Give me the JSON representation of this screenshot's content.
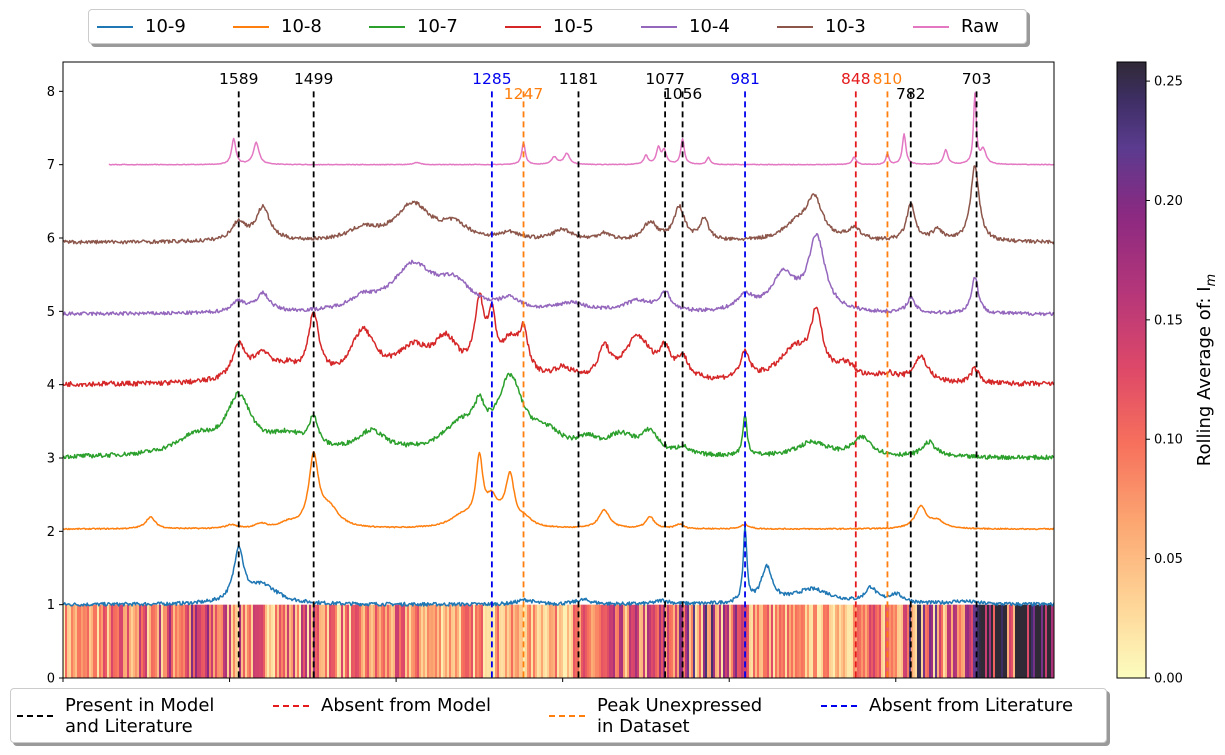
{
  "chart_data": {
    "type": "line",
    "title": "",
    "xlabel": "",
    "ylabel": "",
    "x_range": [
      1800,
      610
    ],
    "x_reversed": true,
    "ylim": [
      0,
      8.4
    ],
    "yticks": [
      "0",
      "1",
      "2",
      "3",
      "4",
      "5",
      "6",
      "7",
      "8"
    ],
    "grid": false,
    "legend_placement": "top-center",
    "series": [
      {
        "name": "10-9",
        "color": "#1f77b4",
        "offset": 1,
        "peaks": [
          [
            1589,
            0.72,
            7
          ],
          [
            1560,
            0.25,
            22
          ],
          [
            1245,
            0.06,
            12
          ],
          [
            1175,
            0.06,
            12
          ],
          [
            1080,
            0.05,
            10
          ],
          [
            955,
            0.48,
            8
          ],
          [
            981,
            1.02,
            2.5
          ],
          [
            900,
            0.2,
            28
          ],
          [
            830,
            0.2,
            8
          ],
          [
            800,
            0.12,
            12
          ],
          [
            720,
            0.04,
            20
          ]
        ],
        "noise": 0.025
      },
      {
        "name": "10-8",
        "color": "#ff7f0e",
        "offset": 2.03,
        "peaks": [
          [
            1695,
            0.16,
            7
          ],
          [
            1598,
            0.05,
            8
          ],
          [
            1562,
            0.06,
            8
          ],
          [
            1530,
            0.06,
            10
          ],
          [
            1499,
            0.95,
            7
          ],
          [
            1480,
            0.25,
            14
          ],
          [
            1320,
            0.16,
            18
          ],
          [
            1300,
            0.87,
            5
          ],
          [
            1285,
            0.32,
            8
          ],
          [
            1270,
            0.1,
            10
          ],
          [
            1263,
            0.62,
            6
          ],
          [
            1245,
            0.1,
            10
          ],
          [
            1150,
            0.25,
            8
          ],
          [
            1095,
            0.16,
            6
          ],
          [
            1060,
            0.06,
            6
          ],
          [
            981,
            0.06,
            6
          ],
          [
            770,
            0.3,
            8
          ],
          [
            750,
            0.1,
            10
          ]
        ],
        "noise": 0.008
      },
      {
        "name": "10-7",
        "color": "#2ca02c",
        "offset": 3,
        "peaks": [
          [
            1589,
            0.75,
            18
          ],
          [
            1640,
            0.25,
            30
          ],
          [
            1530,
            0.25,
            30
          ],
          [
            1499,
            0.4,
            6
          ],
          [
            1430,
            0.3,
            22
          ],
          [
            1320,
            0.4,
            30
          ],
          [
            1300,
            0.35,
            7
          ],
          [
            1263,
            0.95,
            18
          ],
          [
            1220,
            0.25,
            25
          ],
          [
            1170,
            0.15,
            15
          ],
          [
            1130,
            0.25,
            22
          ],
          [
            1095,
            0.28,
            12
          ],
          [
            1056,
            0.1,
            8
          ],
          [
            981,
            0.55,
            3
          ],
          [
            900,
            0.2,
            22
          ],
          [
            840,
            0.25,
            14
          ],
          [
            760,
            0.2,
            10
          ]
        ],
        "noise": 0.03
      },
      {
        "name": "10-5",
        "color": "#d62728",
        "offset": 4,
        "peaks": [
          [
            1589,
            0.45,
            10
          ],
          [
            1560,
            0.35,
            15
          ],
          [
            1530,
            0.15,
            15
          ],
          [
            1499,
            0.85,
            8
          ],
          [
            1440,
            0.65,
            18
          ],
          [
            1380,
            0.4,
            25
          ],
          [
            1340,
            0.5,
            18
          ],
          [
            1300,
            0.95,
            7
          ],
          [
            1285,
            0.7,
            6
          ],
          [
            1263,
            0.45,
            12
          ],
          [
            1247,
            0.55,
            7
          ],
          [
            1200,
            0.15,
            15
          ],
          [
            1150,
            0.4,
            8
          ],
          [
            1110,
            0.6,
            20
          ],
          [
            1077,
            0.35,
            8
          ],
          [
            1056,
            0.28,
            8
          ],
          [
            981,
            0.35,
            7
          ],
          [
            920,
            0.45,
            25
          ],
          [
            895,
            0.8,
            8
          ],
          [
            860,
            0.2,
            15
          ],
          [
            810,
            0.1,
            15
          ],
          [
            770,
            0.35,
            10
          ],
          [
            705,
            0.2,
            6
          ]
        ],
        "noise": 0.035
      },
      {
        "name": "10-4",
        "color": "#9467bd",
        "offset": 4.96,
        "peaks": [
          [
            1589,
            0.15,
            10
          ],
          [
            1560,
            0.25,
            10
          ],
          [
            1440,
            0.15,
            20
          ],
          [
            1380,
            0.62,
            30
          ],
          [
            1330,
            0.35,
            25
          ],
          [
            1263,
            0.15,
            15
          ],
          [
            1190,
            0.12,
            22
          ],
          [
            1110,
            0.15,
            20
          ],
          [
            1077,
            0.25,
            8
          ],
          [
            981,
            0.2,
            12
          ],
          [
            935,
            0.5,
            18
          ],
          [
            895,
            1.0,
            12
          ],
          [
            782,
            0.2,
            6
          ],
          [
            705,
            0.5,
            5
          ]
        ],
        "noise": 0.025
      },
      {
        "name": "10-3",
        "color": "#8c564b",
        "offset": 5.94,
        "peaks": [
          [
            1589,
            0.25,
            10
          ],
          [
            1560,
            0.45,
            10
          ],
          [
            1440,
            0.15,
            20
          ],
          [
            1380,
            0.5,
            25
          ],
          [
            1330,
            0.2,
            20
          ],
          [
            1263,
            0.1,
            15
          ],
          [
            1200,
            0.15,
            15
          ],
          [
            1150,
            0.1,
            10
          ],
          [
            1095,
            0.25,
            10
          ],
          [
            1060,
            0.45,
            8
          ],
          [
            1030,
            0.3,
            6
          ],
          [
            920,
            0.2,
            20
          ],
          [
            898,
            0.55,
            12
          ],
          [
            850,
            0.15,
            10
          ],
          [
            782,
            0.5,
            6
          ],
          [
            750,
            0.15,
            8
          ],
          [
            705,
            1.05,
            6
          ]
        ],
        "noise": 0.025
      },
      {
        "name": "Raw",
        "color": "#e377c2",
        "offset": 7,
        "x_start": 1745,
        "peaks": [
          [
            1595,
            0.35,
            3
          ],
          [
            1568,
            0.3,
            4
          ],
          [
            1375,
            0.03,
            5
          ],
          [
            1247,
            0.3,
            2.5
          ],
          [
            1210,
            0.1,
            4
          ],
          [
            1195,
            0.15,
            4
          ],
          [
            1100,
            0.12,
            3
          ],
          [
            1085,
            0.22,
            3
          ],
          [
            1078,
            0.18,
            3
          ],
          [
            1056,
            0.35,
            2.5
          ],
          [
            1025,
            0.1,
            2.5
          ],
          [
            850,
            0.1,
            3
          ],
          [
            810,
            0.15,
            2
          ],
          [
            790,
            0.42,
            2.5
          ],
          [
            740,
            0.2,
            3
          ],
          [
            705,
            0.95,
            2
          ],
          [
            695,
            0.2,
            4
          ]
        ],
        "noise": 0.004
      }
    ],
    "vlines": [
      {
        "x": 1589,
        "label": "1589",
        "kind": "present",
        "label_level": "high"
      },
      {
        "x": 1499,
        "label": "1499",
        "kind": "present",
        "label_level": "high"
      },
      {
        "x": 1285,
        "label": "1285",
        "kind": "absent_literature",
        "label_level": "high"
      },
      {
        "x": 1247,
        "label": "1247",
        "kind": "unexpressed",
        "label_level": "low"
      },
      {
        "x": 1181,
        "label": "1181",
        "kind": "present",
        "label_level": "high"
      },
      {
        "x": 1077,
        "label": "1077",
        "kind": "present",
        "label_level": "high"
      },
      {
        "x": 1056,
        "label": "1056",
        "kind": "present",
        "label_level": "low"
      },
      {
        "x": 981,
        "label": "981",
        "kind": "absent_literature",
        "label_level": "high"
      },
      {
        "x": 848,
        "label": "848",
        "kind": "absent_model",
        "label_level": "high"
      },
      {
        "x": 810,
        "label": "810",
        "kind": "unexpressed",
        "label_level": "high"
      },
      {
        "x": 782,
        "label": "782",
        "kind": "present",
        "label_level": "low"
      },
      {
        "x": 703,
        "label": "703",
        "kind": "present",
        "label_level": "high"
      }
    ],
    "vline_colors": {
      "present": "#000000",
      "absent_model": "#e41a1c",
      "unexpressed": "#ff7f0e",
      "absent_literature": "#0000ee"
    },
    "heatmap": {
      "y_range": [
        0,
        1
      ],
      "colormap": "magma_r",
      "vmin": 0,
      "vmax": 0.258,
      "colorbar_ticks": [
        "0.00",
        "0.05",
        "0.10",
        "0.15",
        "0.20",
        "0.25"
      ],
      "colorbar_label": "Rolling Average of: I",
      "colorbar_label_sub": "m",
      "profile": [
        [
          1800,
          0.06
        ],
        [
          1700,
          0.09
        ],
        [
          1650,
          0.12
        ],
        [
          1600,
          0.1
        ],
        [
          1560,
          0.08
        ],
        [
          1500,
          0.1
        ],
        [
          1450,
          0.07
        ],
        [
          1400,
          0.08
        ],
        [
          1350,
          0.06
        ],
        [
          1300,
          0.07
        ],
        [
          1250,
          0.05
        ],
        [
          1200,
          0.06
        ],
        [
          1150,
          0.09
        ],
        [
          1100,
          0.1
        ],
        [
          1060,
          0.12
        ],
        [
          1030,
          0.14
        ],
        [
          1000,
          0.12
        ],
        [
          960,
          0.08
        ],
        [
          900,
          0.05
        ],
        [
          850,
          0.07
        ],
        [
          800,
          0.09
        ],
        [
          790,
          0.2
        ],
        [
          760,
          0.12
        ],
        [
          720,
          0.1
        ],
        [
          705,
          0.14
        ],
        [
          690,
          0.25
        ],
        [
          670,
          0.258
        ]
      ]
    }
  },
  "legend_top": {
    "items": [
      {
        "label": "10-9",
        "color": "#1f77b4"
      },
      {
        "label": "10-8",
        "color": "#ff7f0e"
      },
      {
        "label": "10-7",
        "color": "#2ca02c"
      },
      {
        "label": "10-5",
        "color": "#d62728"
      },
      {
        "label": "10-4",
        "color": "#9467bd"
      },
      {
        "label": "10-3",
        "color": "#8c564b"
      },
      {
        "label": "Raw",
        "color": "#e377c2"
      }
    ]
  },
  "legend_bottom": {
    "items": [
      {
        "label": "Present in Model\nand Literature",
        "color": "#000000"
      },
      {
        "label": "Absent from Model",
        "color": "#e41a1c"
      },
      {
        "label": "Peak Unexpressed\nin Dataset",
        "color": "#ff7f0e"
      },
      {
        "label": "Absent from Literature",
        "color": "#0000ee"
      }
    ]
  }
}
